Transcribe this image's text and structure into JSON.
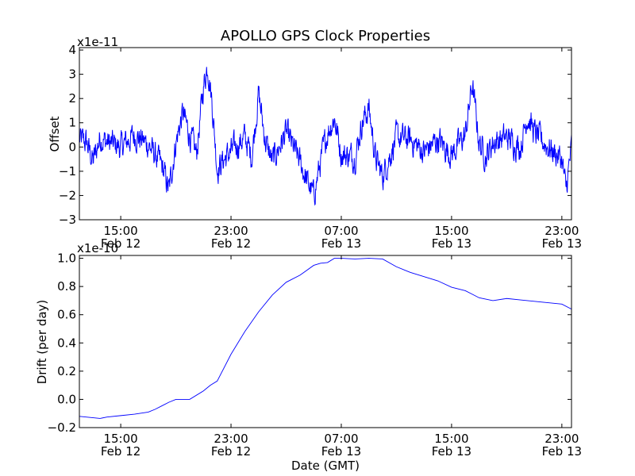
{
  "title": "APOLLO GPS Clock Properties",
  "xlabel": "Date (GMT)",
  "xticks": [
    {
      "time": "15:00",
      "date": "Feb 12",
      "t": 3
    },
    {
      "time": "23:00",
      "date": "Feb 12",
      "t": 11
    },
    {
      "time": "07:00",
      "date": "Feb 13",
      "t": 19
    },
    {
      "time": "15:00",
      "date": "Feb 13",
      "t": 27
    },
    {
      "time": "23:00",
      "date": "Feb 13",
      "t": 35
    }
  ],
  "xlim": [
    0,
    35.7
  ],
  "colors": {
    "line": "#0000ff",
    "axes": "#000000",
    "background": "#ffffff"
  },
  "chart_data": [
    {
      "type": "line",
      "name": "offset",
      "ylabel": "Offset",
      "exponent": "x1e-11",
      "ylim": [
        -3,
        4.1
      ],
      "yticks": [
        -3,
        -2,
        -1,
        0,
        1,
        2,
        3,
        4
      ],
      "ytick_labels": [
        "−3",
        "−2",
        "−1",
        "0",
        "1",
        "2",
        "3",
        "4"
      ],
      "noise": 0.45,
      "series": [
        {
          "name": "Offset",
          "x": [
            0,
            0.5,
            1.0,
            1.5,
            2.0,
            3.0,
            4.0,
            5.0,
            6.0,
            6.5,
            7.0,
            7.5,
            8.0,
            8.5,
            9.0,
            9.3,
            9.6,
            10.0,
            10.5,
            11.0,
            12.0,
            12.5,
            13.0,
            13.5,
            14.0,
            15.0,
            16.0,
            16.5,
            17.0,
            17.5,
            18.0,
            18.5,
            19.0,
            20.0,
            20.5,
            21.0,
            21.5,
            22.0,
            23.0,
            24.0,
            25.0,
            26.0,
            27.0,
            28.0,
            28.5,
            29.0,
            29.5,
            30.0,
            31.0,
            32.0,
            32.5,
            33.0,
            34.0,
            35.0,
            35.3,
            35.7
          ],
          "values": [
            0.3,
            0.2,
            -0.6,
            0.4,
            0.2,
            0.0,
            0.5,
            0.1,
            -0.8,
            -1.8,
            0.2,
            1.4,
            0.5,
            -0.3,
            2.5,
            3.4,
            2.0,
            -0.9,
            -0.5,
            -0.2,
            0.4,
            -0.4,
            2.2,
            0.2,
            -0.6,
            0.6,
            -0.6,
            -1.4,
            -2.0,
            -0.6,
            0.6,
            1.2,
            -0.3,
            -0.4,
            1.0,
            1.6,
            -0.5,
            -1.2,
            0.4,
            0.3,
            -0.2,
            0.3,
            -0.3,
            0.5,
            2.6,
            0.2,
            -0.4,
            0.2,
            0.4,
            0.0,
            1.3,
            0.6,
            0.0,
            -0.5,
            -1.8,
            0.0
          ]
        }
      ]
    },
    {
      "type": "line",
      "name": "drift",
      "ylabel": "Drift (per day)",
      "exponent": "x1e-10",
      "ylim": [
        -0.2,
        1.02
      ],
      "yticks": [
        -0.2,
        0.0,
        0.2,
        0.4,
        0.6,
        0.8,
        1.0
      ],
      "ytick_labels": [
        "−0.2",
        "0.0",
        "0.2",
        "0.4",
        "0.6",
        "0.8",
        "1.0"
      ],
      "series": [
        {
          "name": "Drift",
          "x": [
            0,
            1.0,
            1.5,
            2.0,
            3.0,
            4.0,
            5.0,
            5.5,
            6.0,
            6.5,
            7.0,
            8.0,
            9.0,
            9.5,
            10.0,
            11.0,
            12.0,
            13.0,
            14.0,
            15.0,
            16.0,
            17.0,
            17.5,
            18.0,
            18.5,
            19.0,
            20.0,
            21.0,
            22.0,
            23.0,
            24.0,
            25.0,
            26.0,
            27.0,
            28.0,
            28.5,
            29.0,
            30.0,
            31.0,
            32.0,
            33.0,
            34.0,
            35.0,
            35.7
          ],
          "values": [
            -0.12,
            -0.13,
            -0.135,
            -0.125,
            -0.115,
            -0.105,
            -0.09,
            -0.07,
            -0.045,
            -0.02,
            0.0,
            0.0,
            0.06,
            0.1,
            0.13,
            0.32,
            0.48,
            0.62,
            0.74,
            0.83,
            0.88,
            0.95,
            0.965,
            0.97,
            1.0,
            1.0,
            0.995,
            1.0,
            0.995,
            0.94,
            0.9,
            0.87,
            0.84,
            0.795,
            0.77,
            0.745,
            0.72,
            0.7,
            0.715,
            0.705,
            0.695,
            0.685,
            0.675,
            0.64
          ]
        }
      ]
    }
  ]
}
